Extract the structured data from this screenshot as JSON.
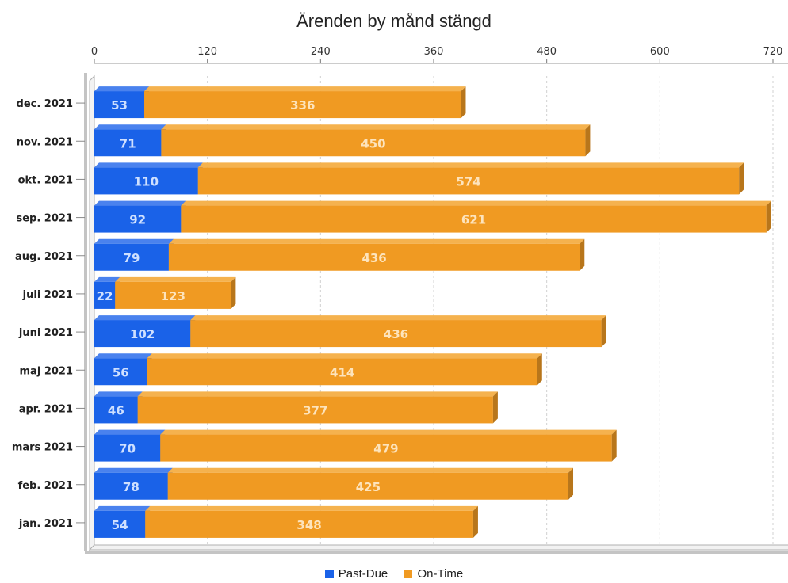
{
  "colors": {
    "past_due": "#1a62e8",
    "on_time": "#f09a22"
  },
  "chart_data": {
    "type": "bar",
    "orientation": "horizontal",
    "stacked": true,
    "title": "Ärenden by månd stängd",
    "categories": [
      "dec. 2021",
      "nov. 2021",
      "okt. 2021",
      "sep. 2021",
      "aug. 2021",
      "juli 2021",
      "juni 2021",
      "maj 2021",
      "apr. 2021",
      "mars 2021",
      "feb. 2021",
      "jan. 2021"
    ],
    "series": [
      {
        "name": "Past-Due",
        "values": [
          53,
          71,
          110,
          92,
          79,
          22,
          102,
          56,
          46,
          70,
          78,
          54
        ]
      },
      {
        "name": "On-Time",
        "values": [
          336,
          450,
          574,
          621,
          436,
          123,
          436,
          414,
          377,
          479,
          425,
          348
        ]
      }
    ],
    "x_ticks": [
      0,
      120,
      240,
      360,
      480,
      600,
      720
    ],
    "xlim": [
      0,
      720
    ],
    "xaxis_position": "top",
    "grid": true,
    "legend_position": "bottom"
  }
}
